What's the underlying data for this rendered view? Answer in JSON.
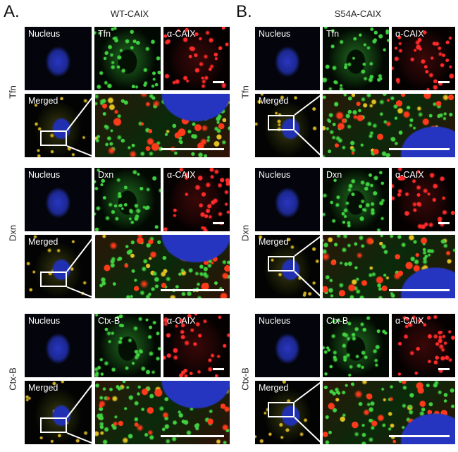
{
  "figure": {
    "columns": [
      {
        "letter": "A.",
        "title": "WT-CAIX"
      },
      {
        "letter": "B.",
        "title": "S54A-CAIX"
      }
    ],
    "blocks": [
      {
        "side_label": "Tfn",
        "panels": [
          "Nucleus",
          "Tfn",
          "α-CAIX"
        ],
        "merged_label": "Merged"
      },
      {
        "side_label": "Dxn",
        "panels": [
          "Nucleus",
          "Dxn",
          "α-CAIX"
        ],
        "merged_label": "Merged"
      },
      {
        "side_label": "Ctx-B",
        "panels": [
          "Nucleus",
          "Ctx-B",
          "α-CAIX"
        ],
        "merged_label": "Merged"
      }
    ],
    "colors": {
      "nucleus": "#2a3acc",
      "marker": "#2fbf2f",
      "caix": "#e02020"
    }
  }
}
